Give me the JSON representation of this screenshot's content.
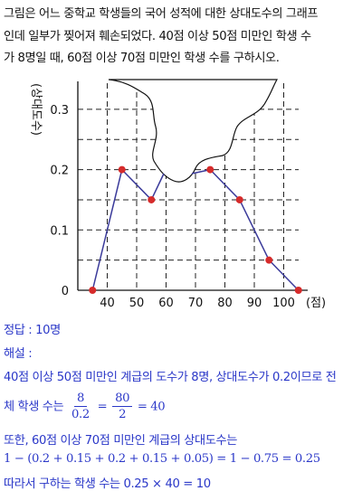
{
  "problem": {
    "lines": [
      "그림은 어느 중학교 학생들의 국어 성적에 대한 상대도수의 그래프",
      "인데 일부가 찢어져 훼손되었다. 40점 이상 50점 미만인 학생 수",
      "가 8명일 때, 60점 이상 70점 미만인 학생 수를 구하시오."
    ]
  },
  "chart_data": {
    "type": "line",
    "ylabel": "(상대도수)",
    "xlabel_unit": "(점)",
    "x_ticks": [
      "40",
      "50",
      "60",
      "70",
      "80",
      "90",
      "100"
    ],
    "y_ticks": [
      "0",
      "0.1",
      "0.2",
      "0.3"
    ],
    "xlim": [
      30,
      110
    ],
    "ylim": [
      0,
      0.35
    ],
    "visible_points": [
      {
        "x": 35,
        "y": 0
      },
      {
        "x": 45,
        "y": 0.2
      },
      {
        "x": 55,
        "y": 0.15
      },
      {
        "x": 75,
        "y": 0.2
      },
      {
        "x": 85,
        "y": 0.15
      },
      {
        "x": 95,
        "y": 0.05
      },
      {
        "x": 105,
        "y": 0
      }
    ],
    "grid": true,
    "torn_region": "60-70 section near top"
  },
  "solution": {
    "answer_label": "정답 : 10명",
    "explain_label": "해설 :",
    "line1": "40점 이상 50점 미만인 계급의 도수가 8명, 상대도수가 0.2이므로 전",
    "line2_prefix": "체 학생 수는",
    "frac1_num": "8",
    "frac1_den": "0.2",
    "eq1": "=",
    "frac2_num": "80",
    "frac2_den": "2",
    "eq2": "= 40",
    "line3": "또한, 60점 이상 70점 미만인 계급의 상대도수는",
    "line4": "1 − (0.2 + 0.15 + 0.2 + 0.15 + 0.05) = 1 − 0.75 = 0.25",
    "line5": "따라서 구하는 학생 수는 0.25 × 40 = 10"
  },
  "colors": {
    "line": "#3a3a9a",
    "point": "#d62b2b",
    "solution_text": "#2a37c8"
  }
}
